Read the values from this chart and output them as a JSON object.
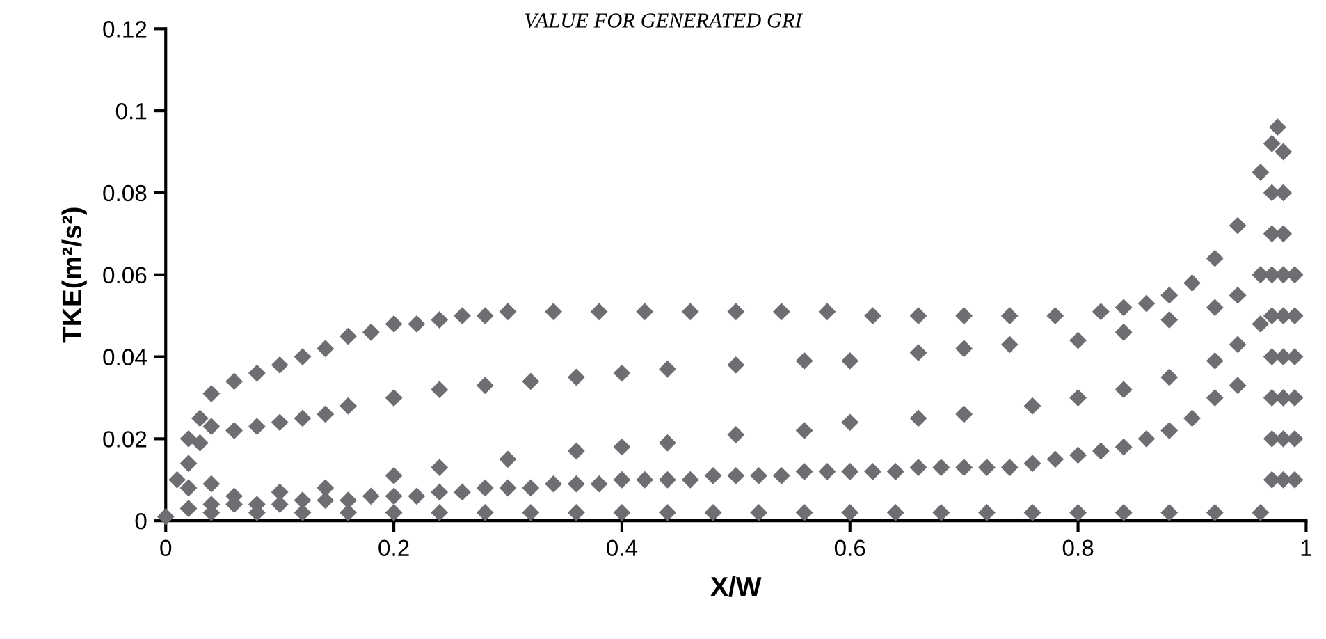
{
  "chart_data": {
    "type": "scatter",
    "title": "VALUE FOR GENERATED GRI",
    "xlabel": "X/W",
    "ylabel": "TKE(m²/s²)",
    "xlim": [
      0,
      1
    ],
    "ylim": [
      0,
      0.12
    ],
    "xticks": [
      0,
      0.2,
      0.4,
      0.6,
      0.8,
      1
    ],
    "yticks": [
      0,
      0.02,
      0.04,
      0.06,
      0.08,
      0.1,
      0.12
    ],
    "marker": "diamond",
    "grid": false,
    "legend": false,
    "series": [
      {
        "color": "#6d6e71",
        "x": [
          0.01,
          0.02,
          0.03,
          0.04,
          0.06,
          0.08,
          0.1,
          0.12,
          0.14,
          0.16,
          0.18,
          0.2,
          0.22,
          0.24,
          0.26,
          0.28,
          0.3,
          0.34,
          0.38,
          0.42,
          0.46,
          0.5,
          0.54,
          0.58,
          0.62,
          0.66,
          0.7,
          0.74,
          0.78,
          0.82,
          0.84,
          0.86,
          0.88,
          0.9,
          0.92,
          0.94,
          0.96,
          0.97,
          0.975
        ],
        "values": [
          0.01,
          0.02,
          0.025,
          0.031,
          0.034,
          0.036,
          0.038,
          0.04,
          0.042,
          0.045,
          0.046,
          0.048,
          0.048,
          0.049,
          0.05,
          0.05,
          0.051,
          0.051,
          0.051,
          0.051,
          0.051,
          0.051,
          0.051,
          0.051,
          0.05,
          0.05,
          0.05,
          0.05,
          0.05,
          0.051,
          0.052,
          0.053,
          0.055,
          0.058,
          0.064,
          0.072,
          0.085,
          0.092,
          0.096
        ]
      },
      {
        "color": "#6d6e71",
        "x": [
          0.02,
          0.03,
          0.04,
          0.06,
          0.08,
          0.1,
          0.12,
          0.14,
          0.16,
          0.2,
          0.24,
          0.28,
          0.32,
          0.36,
          0.4,
          0.44,
          0.5,
          0.56,
          0.6,
          0.66,
          0.7,
          0.74,
          0.8,
          0.84,
          0.88,
          0.92,
          0.94,
          0.96
        ],
        "values": [
          0.014,
          0.019,
          0.023,
          0.022,
          0.023,
          0.024,
          0.025,
          0.026,
          0.028,
          0.03,
          0.032,
          0.033,
          0.034,
          0.035,
          0.036,
          0.037,
          0.038,
          0.039,
          0.039,
          0.041,
          0.042,
          0.043,
          0.044,
          0.046,
          0.049,
          0.052,
          0.055,
          0.06
        ]
      },
      {
        "color": "#6d6e71",
        "x": [
          0.02,
          0.04,
          0.06,
          0.1,
          0.14,
          0.2,
          0.24,
          0.3,
          0.36,
          0.4,
          0.44,
          0.5,
          0.56,
          0.6,
          0.66,
          0.7,
          0.76,
          0.8,
          0.84,
          0.88,
          0.92,
          0.94,
          0.96
        ],
        "values": [
          0.008,
          0.009,
          0.006,
          0.007,
          0.008,
          0.011,
          0.013,
          0.015,
          0.017,
          0.018,
          0.019,
          0.021,
          0.022,
          0.024,
          0.025,
          0.026,
          0.028,
          0.03,
          0.032,
          0.035,
          0.039,
          0.043,
          0.048
        ]
      },
      {
        "color": "#6d6e71",
        "x": [
          0.02,
          0.04,
          0.06,
          0.08,
          0.1,
          0.12,
          0.14,
          0.16,
          0.18,
          0.2,
          0.22,
          0.24,
          0.26,
          0.28,
          0.3,
          0.32,
          0.34,
          0.36,
          0.38,
          0.4,
          0.42,
          0.44,
          0.46,
          0.48,
          0.5,
          0.52,
          0.54,
          0.56,
          0.58,
          0.6,
          0.62,
          0.64,
          0.66,
          0.68,
          0.7,
          0.72,
          0.74,
          0.76,
          0.78,
          0.8,
          0.82,
          0.84,
          0.86,
          0.88,
          0.9,
          0.92,
          0.94
        ],
        "values": [
          0.003,
          0.004,
          0.004,
          0.004,
          0.004,
          0.005,
          0.005,
          0.005,
          0.006,
          0.006,
          0.006,
          0.007,
          0.007,
          0.008,
          0.008,
          0.008,
          0.009,
          0.009,
          0.009,
          0.01,
          0.01,
          0.01,
          0.01,
          0.011,
          0.011,
          0.011,
          0.011,
          0.012,
          0.012,
          0.012,
          0.012,
          0.012,
          0.013,
          0.013,
          0.013,
          0.013,
          0.013,
          0.014,
          0.015,
          0.016,
          0.017,
          0.018,
          0.02,
          0.022,
          0.025,
          0.03,
          0.033
        ]
      },
      {
        "color": "#6d6e71",
        "x": [
          0.0,
          0.04,
          0.08,
          0.12,
          0.16,
          0.2,
          0.24,
          0.28,
          0.32,
          0.36,
          0.4,
          0.44,
          0.48,
          0.52,
          0.56,
          0.6,
          0.64,
          0.68,
          0.72,
          0.76,
          0.8,
          0.84,
          0.88,
          0.92,
          0.96
        ],
        "values": [
          0.001,
          0.002,
          0.002,
          0.002,
          0.002,
          0.002,
          0.002,
          0.002,
          0.002,
          0.002,
          0.002,
          0.002,
          0.002,
          0.002,
          0.002,
          0.002,
          0.002,
          0.002,
          0.002,
          0.002,
          0.002,
          0.002,
          0.002,
          0.002,
          0.002
        ]
      },
      {
        "color": "#6d6e71",
        "x": [
          0.97,
          0.97,
          0.97,
          0.97,
          0.97,
          0.97,
          0.97,
          0.97,
          0.98,
          0.98,
          0.98,
          0.98,
          0.98,
          0.98,
          0.98,
          0.98,
          0.98,
          0.99,
          0.99,
          0.99,
          0.99,
          0.99,
          0.99
        ],
        "values": [
          0.01,
          0.02,
          0.03,
          0.04,
          0.05,
          0.06,
          0.07,
          0.08,
          0.01,
          0.02,
          0.03,
          0.04,
          0.05,
          0.06,
          0.07,
          0.08,
          0.09,
          0.01,
          0.02,
          0.03,
          0.04,
          0.05,
          0.06
        ]
      }
    ]
  }
}
